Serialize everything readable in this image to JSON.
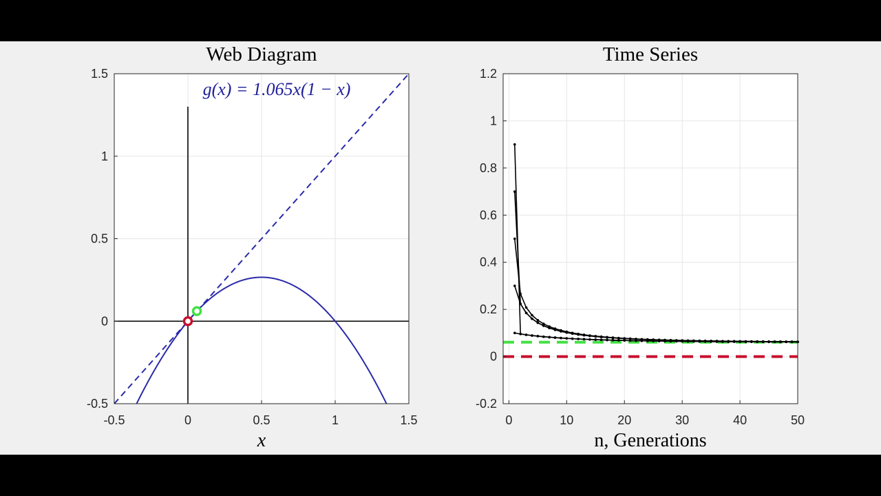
{
  "charts": [
    {
      "id": "web",
      "chart_data": {
        "type": "line",
        "title": "Web Diagram",
        "xlabel": "x",
        "ylabel": "",
        "xlim": [
          -0.5,
          1.5
        ],
        "ylim": [
          -0.5,
          1.5
        ],
        "xticks": [
          -0.5,
          0,
          0.5,
          1,
          1.5
        ],
        "yticks": [
          -0.5,
          0,
          0.5,
          1,
          1.5
        ],
        "xtick_labels": [
          "-0.5",
          "0",
          "0.5",
          "1",
          "1.5"
        ],
        "ytick_labels": [
          "-0.5",
          "0",
          "0.5",
          "1",
          "1.5"
        ],
        "grid": true,
        "annotation": "g(x) = 1.065x(1 − x)",
        "map_parameter_r": 1.065,
        "series": [
          {
            "kind": "parabola",
            "r": 1.065,
            "color": "#2a2aa8"
          },
          {
            "kind": "identity",
            "color": "#2a2aa8",
            "dash": true
          }
        ],
        "fixed_points": [
          {
            "x": 0,
            "y": 0,
            "color": "#c8102e"
          },
          {
            "x": 0.061,
            "y": 0.061,
            "color": "#44e044"
          }
        ]
      }
    },
    {
      "id": "ts",
      "chart_data": {
        "type": "line",
        "title": "Time Series",
        "xlabel": "n, Generations",
        "ylabel": "",
        "xlim": [
          -1,
          50
        ],
        "ylim": [
          -0.2,
          1.2
        ],
        "xticks": [
          0,
          10,
          20,
          30,
          40,
          50
        ],
        "yticks": [
          -0.2,
          0,
          0.2,
          0.4,
          0.6,
          0.8,
          1,
          1.2
        ],
        "xtick_labels": [
          "0",
          "10",
          "20",
          "30",
          "40",
          "50"
        ],
        "ytick_labels": [
          "-0.2",
          "0",
          "0.2",
          "0.4",
          "0.6",
          "0.8",
          "1",
          "1.2"
        ],
        "grid": true,
        "r": 1.065,
        "initial_values": [
          0.9,
          0.7,
          0.5,
          0.3,
          0.1
        ],
        "n_range": [
          1,
          50
        ],
        "fixed_lines": [
          {
            "y": 0.061,
            "color": "#44e044"
          },
          {
            "y": 0,
            "color": "#c8102e"
          }
        ]
      }
    }
  ]
}
